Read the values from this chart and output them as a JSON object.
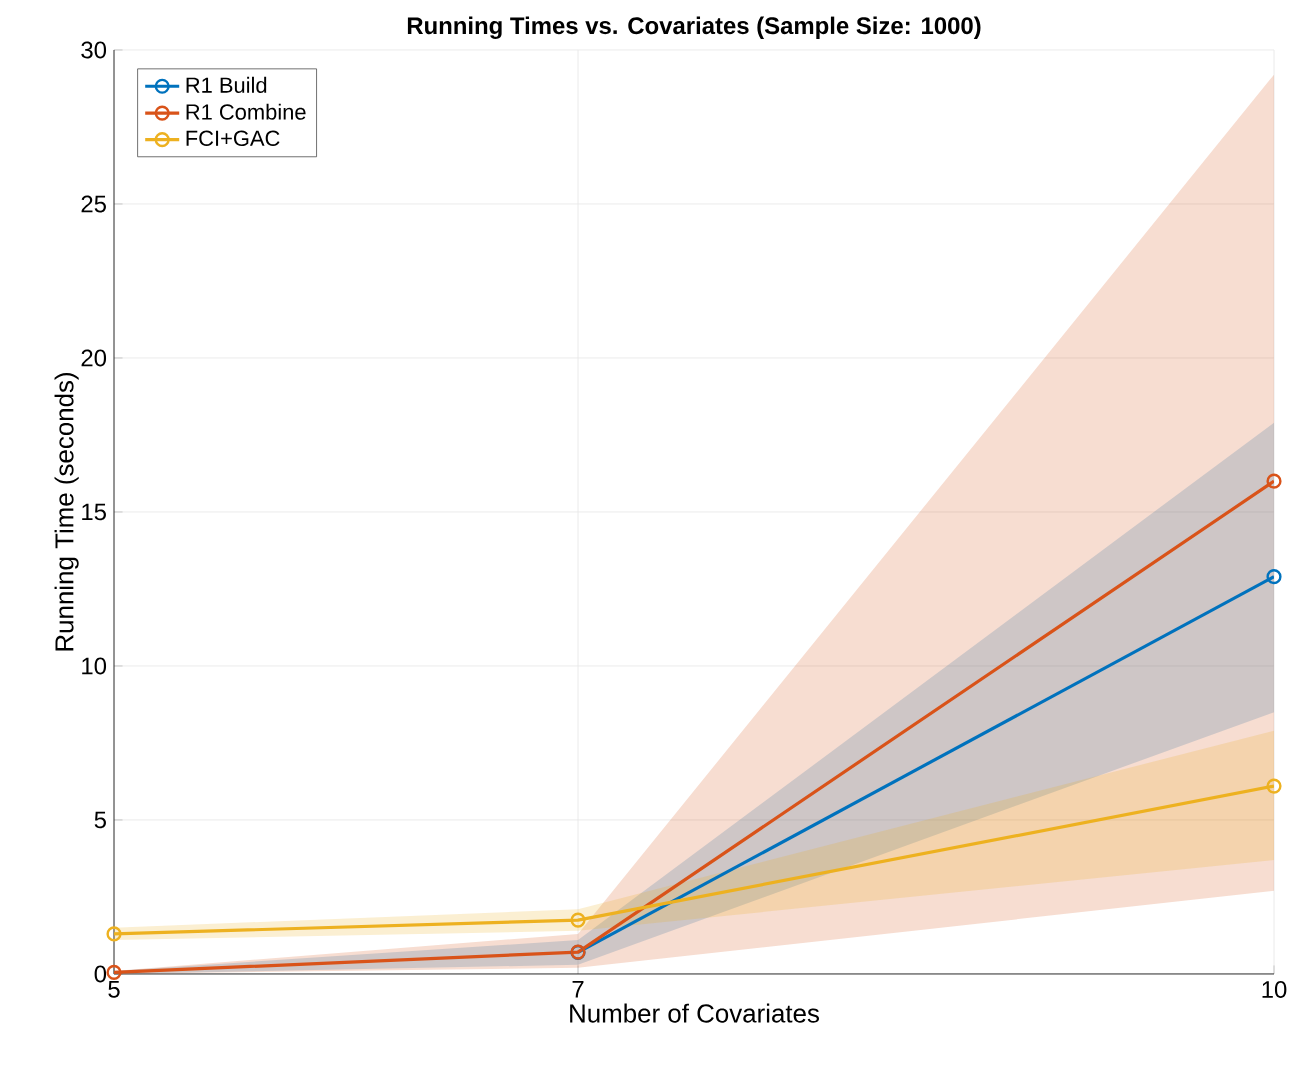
{
  "chart_data": {
    "type": "line",
    "title": "Running Times vs. Covariates (Sample Size: 1000)",
    "xlabel": "Number of Covariates",
    "ylabel": "Running Time (seconds)",
    "x": [
      5,
      7,
      10
    ],
    "series": [
      {
        "name": "R1 Build",
        "color": "#0072bd",
        "values": [
          null,
          0.7,
          12.9
        ],
        "lower": [
          0.0,
          0.3,
          8.5
        ],
        "upper": [
          0.1,
          1.1,
          17.9
        ]
      },
      {
        "name": "R1 Combine",
        "color": "#d95319",
        "values": [
          0.05,
          0.71,
          16.0
        ],
        "lower": [
          0.0,
          0.2,
          2.7
        ],
        "upper": [
          0.1,
          1.3,
          29.2
        ]
      },
      {
        "name": "FCI+GAC",
        "color": "#edb120",
        "values": [
          1.3,
          1.75,
          6.1
        ],
        "lower": [
          1.1,
          1.4,
          3.7
        ],
        "upper": [
          1.5,
          2.1,
          7.9
        ]
      }
    ],
    "xlim": [
      5,
      10
    ],
    "ylim": [
      0,
      30
    ],
    "xticks": [
      5,
      7,
      10
    ],
    "yticks": [
      0,
      5,
      10,
      15,
      20,
      25,
      30
    ],
    "grid": true,
    "legend": "top left",
    "marker": "circle",
    "line_style": "solid"
  }
}
